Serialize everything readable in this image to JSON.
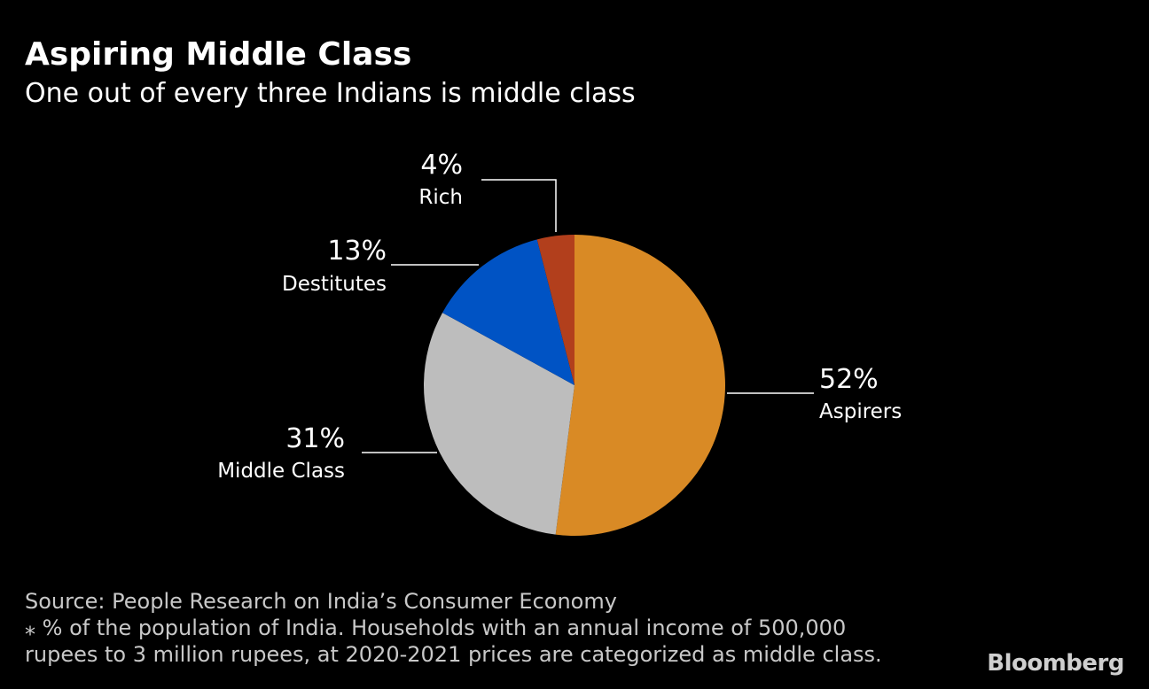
{
  "header": {
    "title": "Aspiring Middle Class",
    "subtitle": "One out of every three Indians is middle class"
  },
  "chart_data": {
    "type": "pie",
    "title": "Aspiring Middle Class",
    "subtitle": "One out of every three Indians is middle class",
    "slices": [
      {
        "label": "Aspirers",
        "value": 52,
        "display": "52%",
        "color": "#d98a25"
      },
      {
        "label": "Middle Class",
        "value": 31,
        "display": "31%",
        "color": "#bdbdbd"
      },
      {
        "label": "Destitutes",
        "value": 13,
        "display": "13%",
        "color": "#0053c4"
      },
      {
        "label": "Rich",
        "value": 4,
        "display": "4%",
        "color": "#b23f1c"
      }
    ]
  },
  "footer": {
    "source": "Source: People Research on India’s Consumer Economy",
    "note_line1": "⁎ % of the population of India. Households with an annual income of 500,000",
    "note_line2": "rupees to 3 million rupees, at 2020-2021 prices are categorized as middle class."
  },
  "brand": "Bloomberg"
}
